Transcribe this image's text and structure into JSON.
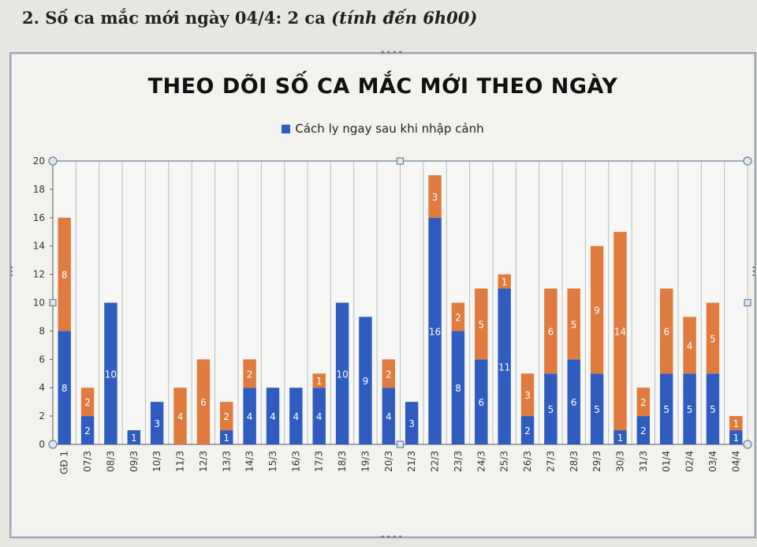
{
  "heading": {
    "main": "2.  Số ca mắc mới ngày 04/4: 2 ca",
    "note": "(tính đến 6h00)"
  },
  "chart_data": {
    "type": "bar",
    "stacked": true,
    "title": "THEO DÕI SỐ CA MẮC MỚI THEO NGÀY",
    "legend": [
      "Cách ly ngay sau khi nhập cảnh"
    ],
    "legend_position": "top-center",
    "grid": true,
    "ylim": [
      0,
      20
    ],
    "yticks": [
      0,
      2,
      4,
      6,
      8,
      10,
      12,
      14,
      16,
      18,
      20
    ],
    "categories": [
      "GĐ 1",
      "07/3",
      "08/3",
      "09/3",
      "10/3",
      "11/3",
      "12/3",
      "13/3",
      "14/3",
      "15/3",
      "16/3",
      "17/3",
      "18/3",
      "19/3",
      "20/3",
      "21/3",
      "22/3",
      "23/3",
      "24/3",
      "25/3",
      "26/3",
      "27/3",
      "28/3",
      "29/3",
      "30/3",
      "31/3",
      "01/4",
      "02/4",
      "03/4",
      "04/4"
    ],
    "series": [
      {
        "name": "Cách ly ngay sau khi nhập cảnh",
        "color": "#2e5cbf",
        "values": [
          8,
          2,
          10,
          1,
          3,
          0,
          0,
          1,
          4,
          4,
          4,
          4,
          10,
          9,
          4,
          3,
          16,
          8,
          6,
          11,
          2,
          5,
          6,
          5,
          1,
          2,
          5,
          5,
          5,
          1
        ]
      },
      {
        "color": "#e07b3f",
        "values": [
          8,
          2,
          0,
          0,
          0,
          4,
          6,
          2,
          2,
          0,
          0,
          1,
          0,
          0,
          2,
          0,
          3,
          2,
          5,
          1,
          3,
          6,
          5,
          9,
          14,
          2,
          6,
          4,
          5,
          1
        ]
      }
    ]
  }
}
